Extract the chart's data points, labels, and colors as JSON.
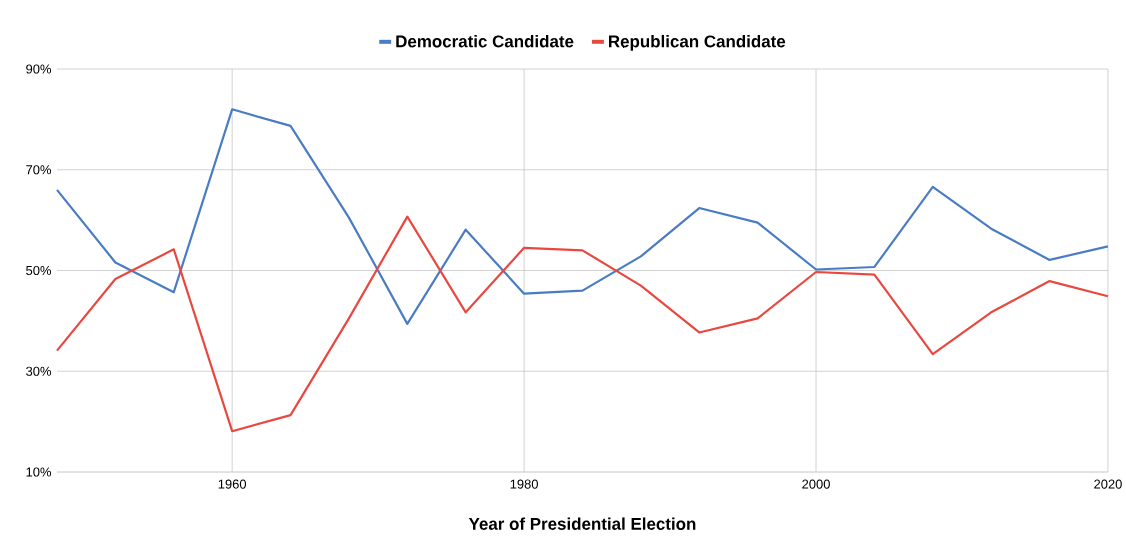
{
  "chart_data": {
    "type": "line",
    "xlabel": "Year of Presidential Election",
    "x": [
      1948,
      1952,
      1956,
      1960,
      1964,
      1968,
      1972,
      1976,
      1980,
      1984,
      1988,
      1992,
      1996,
      2000,
      2004,
      2008,
      2012,
      2016,
      2020
    ],
    "series": [
      {
        "name": "Democratic Candidate",
        "color": "#4a7cc4",
        "values": [
          66,
          51.6,
          45.7,
          82,
          78.7,
          60.5,
          39.4,
          58.1,
          45.4,
          46,
          52.8,
          62.4,
          59.5,
          50.2,
          50.7,
          66.6,
          58.3,
          52.1,
          54.8
        ]
      },
      {
        "name": "Republican Candidate",
        "color": "#e8483f",
        "values": [
          34.1,
          48.3,
          54.2,
          18.1,
          21.3,
          40.5,
          60.7,
          41.7,
          54.5,
          54,
          47,
          37.7,
          40.5,
          49.7,
          49.2,
          33.4,
          41.7,
          47.9,
          44.9
        ]
      }
    ],
    "xlim": [
      1948,
      2020
    ],
    "ylim": [
      10,
      90
    ],
    "xticks": [
      1960,
      1980,
      2000,
      2020
    ],
    "yticks": [
      {
        "value": 10,
        "label": "10%"
      },
      {
        "value": 30,
        "label": "30%"
      },
      {
        "value": 50,
        "label": "50%"
      },
      {
        "value": 70,
        "label": "70%"
      },
      {
        "value": 90,
        "label": "90%"
      }
    ],
    "grid": true,
    "legend": "top"
  }
}
